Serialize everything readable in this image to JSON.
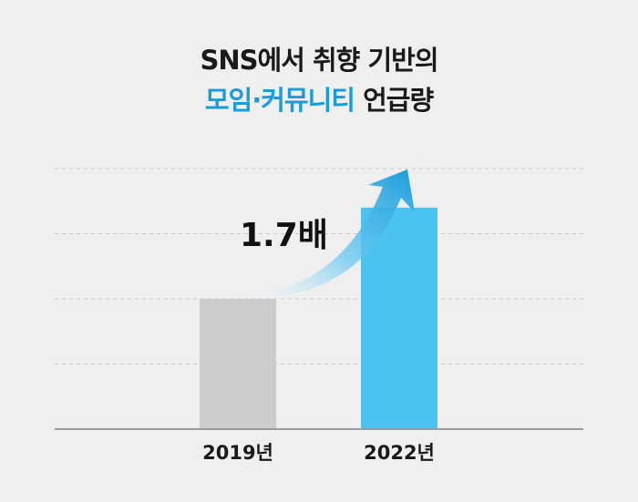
{
  "title": {
    "line1": "SNS에서 취향 기반의",
    "line2_highlight": "모임·커뮤니티",
    "line2_rest": " 언급량"
  },
  "colors": {
    "background": "#efefef",
    "bar_2019": "#cccccc",
    "bar_2022": "#4cc3ef",
    "highlight": "#1a9bdb",
    "arrow": "#1a9bdb"
  },
  "chart_data": {
    "type": "bar",
    "categories": [
      "2019년",
      "2022년"
    ],
    "values": [
      1.0,
      1.7
    ],
    "annotation": "1.7배",
    "grid": true,
    "ylim": [
      0,
      2.0
    ]
  }
}
